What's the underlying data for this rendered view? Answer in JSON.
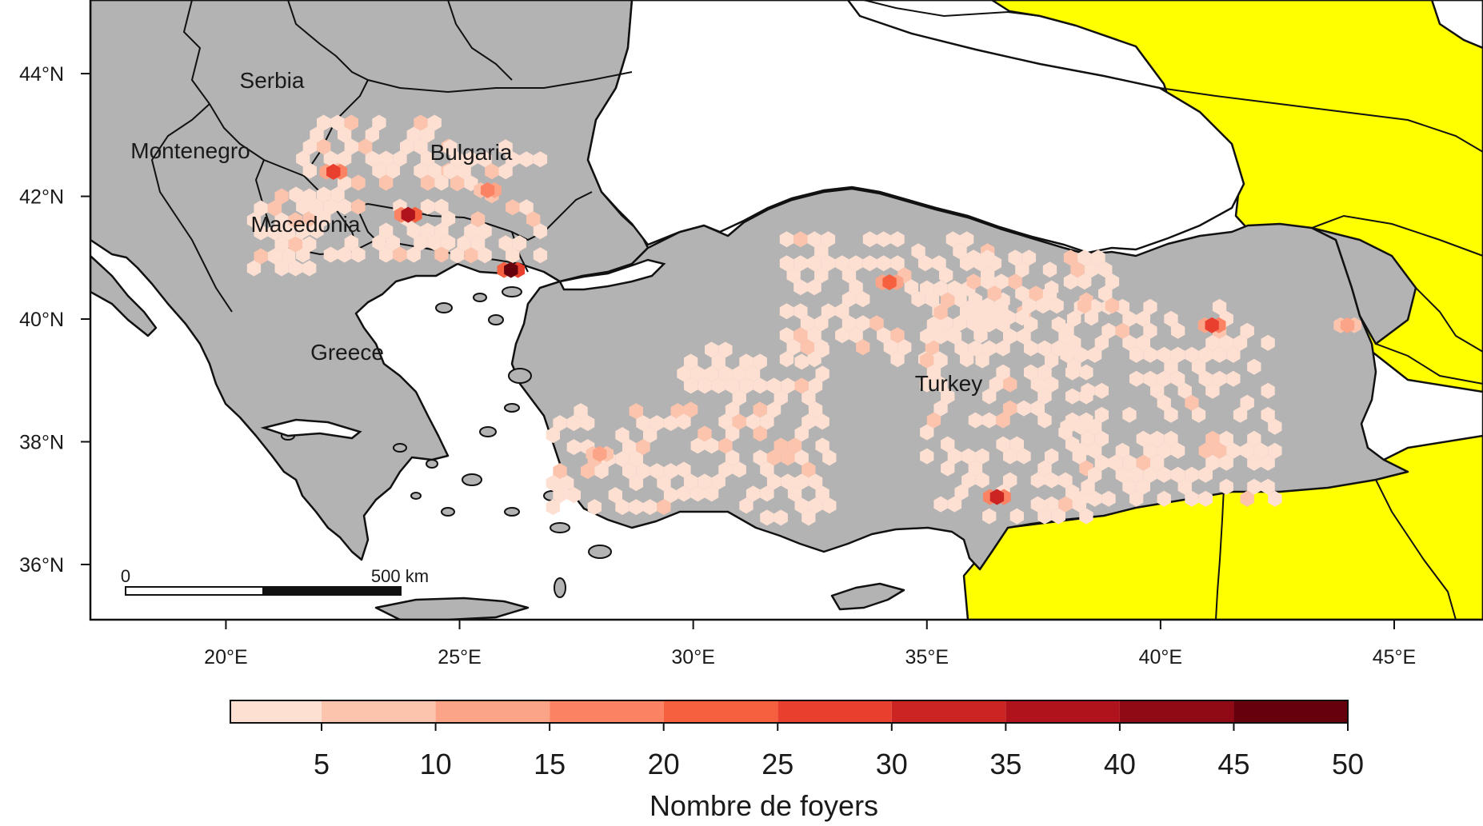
{
  "map": {
    "x_axis_labels": [
      "20°E",
      "25°E",
      "30°E",
      "35°E",
      "40°E",
      "45°E"
    ],
    "y_axis_labels": [
      "44°N",
      "42°N",
      "40°N",
      "38°N",
      "36°N"
    ],
    "lon_ticks": [
      20,
      25,
      30,
      35,
      40,
      45
    ],
    "lat_ticks": [
      44,
      42,
      40,
      38,
      36
    ],
    "lon_range": [
      17.1,
      46.9
    ],
    "lat_range": [
      35.1,
      45.2
    ],
    "countries": [
      "Serbia",
      "Montenegro",
      "Bulgaria",
      "Macedonia",
      "Greece",
      "Turkey"
    ],
    "scale_bar": {
      "start": "0",
      "end": "500 km"
    },
    "colors": {
      "land": "#b3b3b3",
      "sea": "#ffffff",
      "outside_region": "#ffff00",
      "border": "#111111"
    },
    "legend": {
      "title": "Nombre de foyers",
      "ticks": [
        "5",
        "10",
        "15",
        "20",
        "25",
        "30",
        "35",
        "40",
        "45",
        "50"
      ],
      "bins": [
        {
          "range": [
            1,
            5
          ],
          "color": "#fde0d2"
        },
        {
          "range": [
            5,
            10
          ],
          "color": "#fcc4ad"
        },
        {
          "range": [
            10,
            15
          ],
          "color": "#fca487"
        },
        {
          "range": [
            15,
            20
          ],
          "color": "#fb8363"
        },
        {
          "range": [
            20,
            25
          ],
          "color": "#f6603f"
        },
        {
          "range": [
            25,
            30
          ],
          "color": "#e93f2e"
        },
        {
          "range": [
            30,
            35
          ],
          "color": "#cc2422"
        },
        {
          "range": [
            35,
            40
          ],
          "color": "#b0131b"
        },
        {
          "range": [
            40,
            45
          ],
          "color": "#8f0a15"
        },
        {
          "range": [
            45,
            50
          ],
          "color": "#67000d"
        }
      ]
    },
    "outbreak_hotspots": [
      {
        "lon": 22.3,
        "lat": 42.4,
        "count": 27
      },
      {
        "lon": 23.9,
        "lat": 41.7,
        "count": 38
      },
      {
        "lon": 26.1,
        "lat": 40.8,
        "count": 48
      },
      {
        "lon": 25.6,
        "lat": 42.1,
        "count": 18
      },
      {
        "lon": 34.2,
        "lat": 40.6,
        "count": 22
      },
      {
        "lon": 36.5,
        "lat": 37.1,
        "count": 33
      },
      {
        "lon": 41.1,
        "lat": 39.9,
        "count": 28
      },
      {
        "lon": 28.0,
        "lat": 37.8,
        "count": 12
      },
      {
        "lon": 44.0,
        "lat": 39.9,
        "count": 14
      }
    ]
  }
}
